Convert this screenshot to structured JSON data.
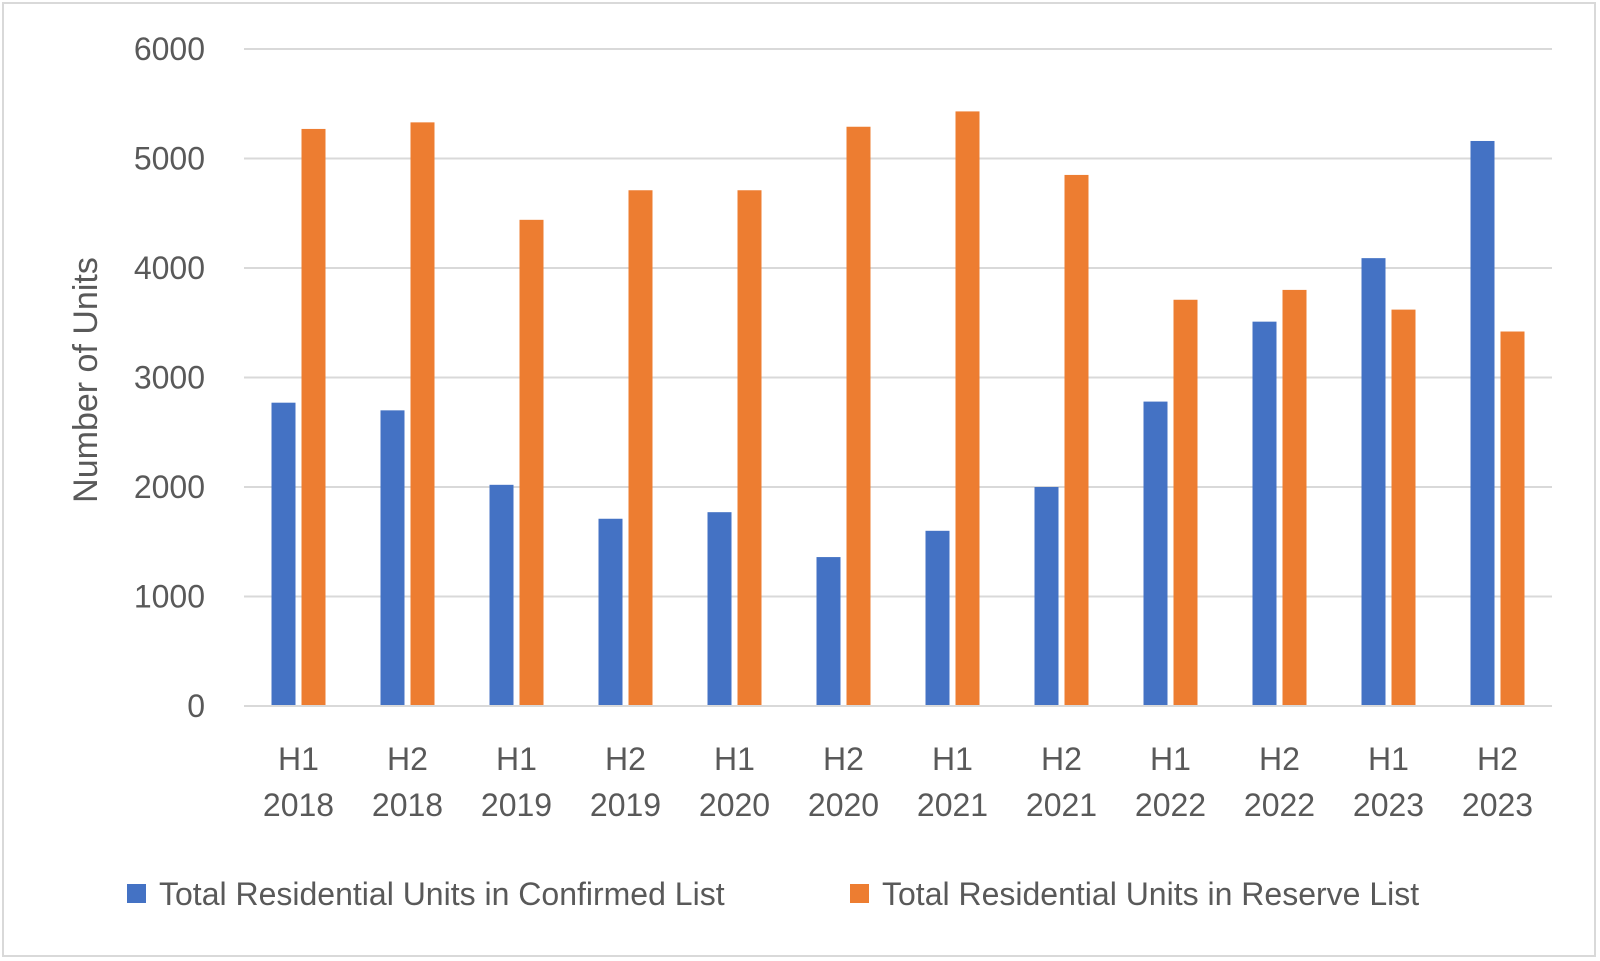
{
  "chart_data": {
    "type": "bar",
    "title": "",
    "xlabel": "",
    "ylabel": "Number of Units",
    "ylim": [
      0,
      6000
    ],
    "yticks": [
      0,
      1000,
      2000,
      3000,
      4000,
      5000,
      6000
    ],
    "grid": true,
    "legend_position": "bottom",
    "categories": [
      [
        "H1",
        "2018"
      ],
      [
        "H2",
        "2018"
      ],
      [
        "H1",
        "2019"
      ],
      [
        "H2",
        "2019"
      ],
      [
        "H1",
        "2020"
      ],
      [
        "H2",
        "2020"
      ],
      [
        "H1",
        "2021"
      ],
      [
        "H2",
        "2021"
      ],
      [
        "H1",
        "2022"
      ],
      [
        "H2",
        "2022"
      ],
      [
        "H1",
        "2023"
      ],
      [
        "H2",
        "2023"
      ]
    ],
    "series": [
      {
        "name": "Total Residential Units in Confirmed List",
        "color": "#4472c4",
        "values": [
          2770,
          2700,
          2020,
          1710,
          1770,
          1360,
          1600,
          2000,
          2780,
          3510,
          4090,
          5160
        ]
      },
      {
        "name": "Total Residential Units in Reserve List",
        "color": "#ed7d31",
        "values": [
          5270,
          5330,
          4440,
          4710,
          4710,
          5290,
          5430,
          4850,
          3710,
          3800,
          3620,
          3420
        ]
      }
    ],
    "gridline_color": "#d9d9d9",
    "text_color": "#595959"
  }
}
